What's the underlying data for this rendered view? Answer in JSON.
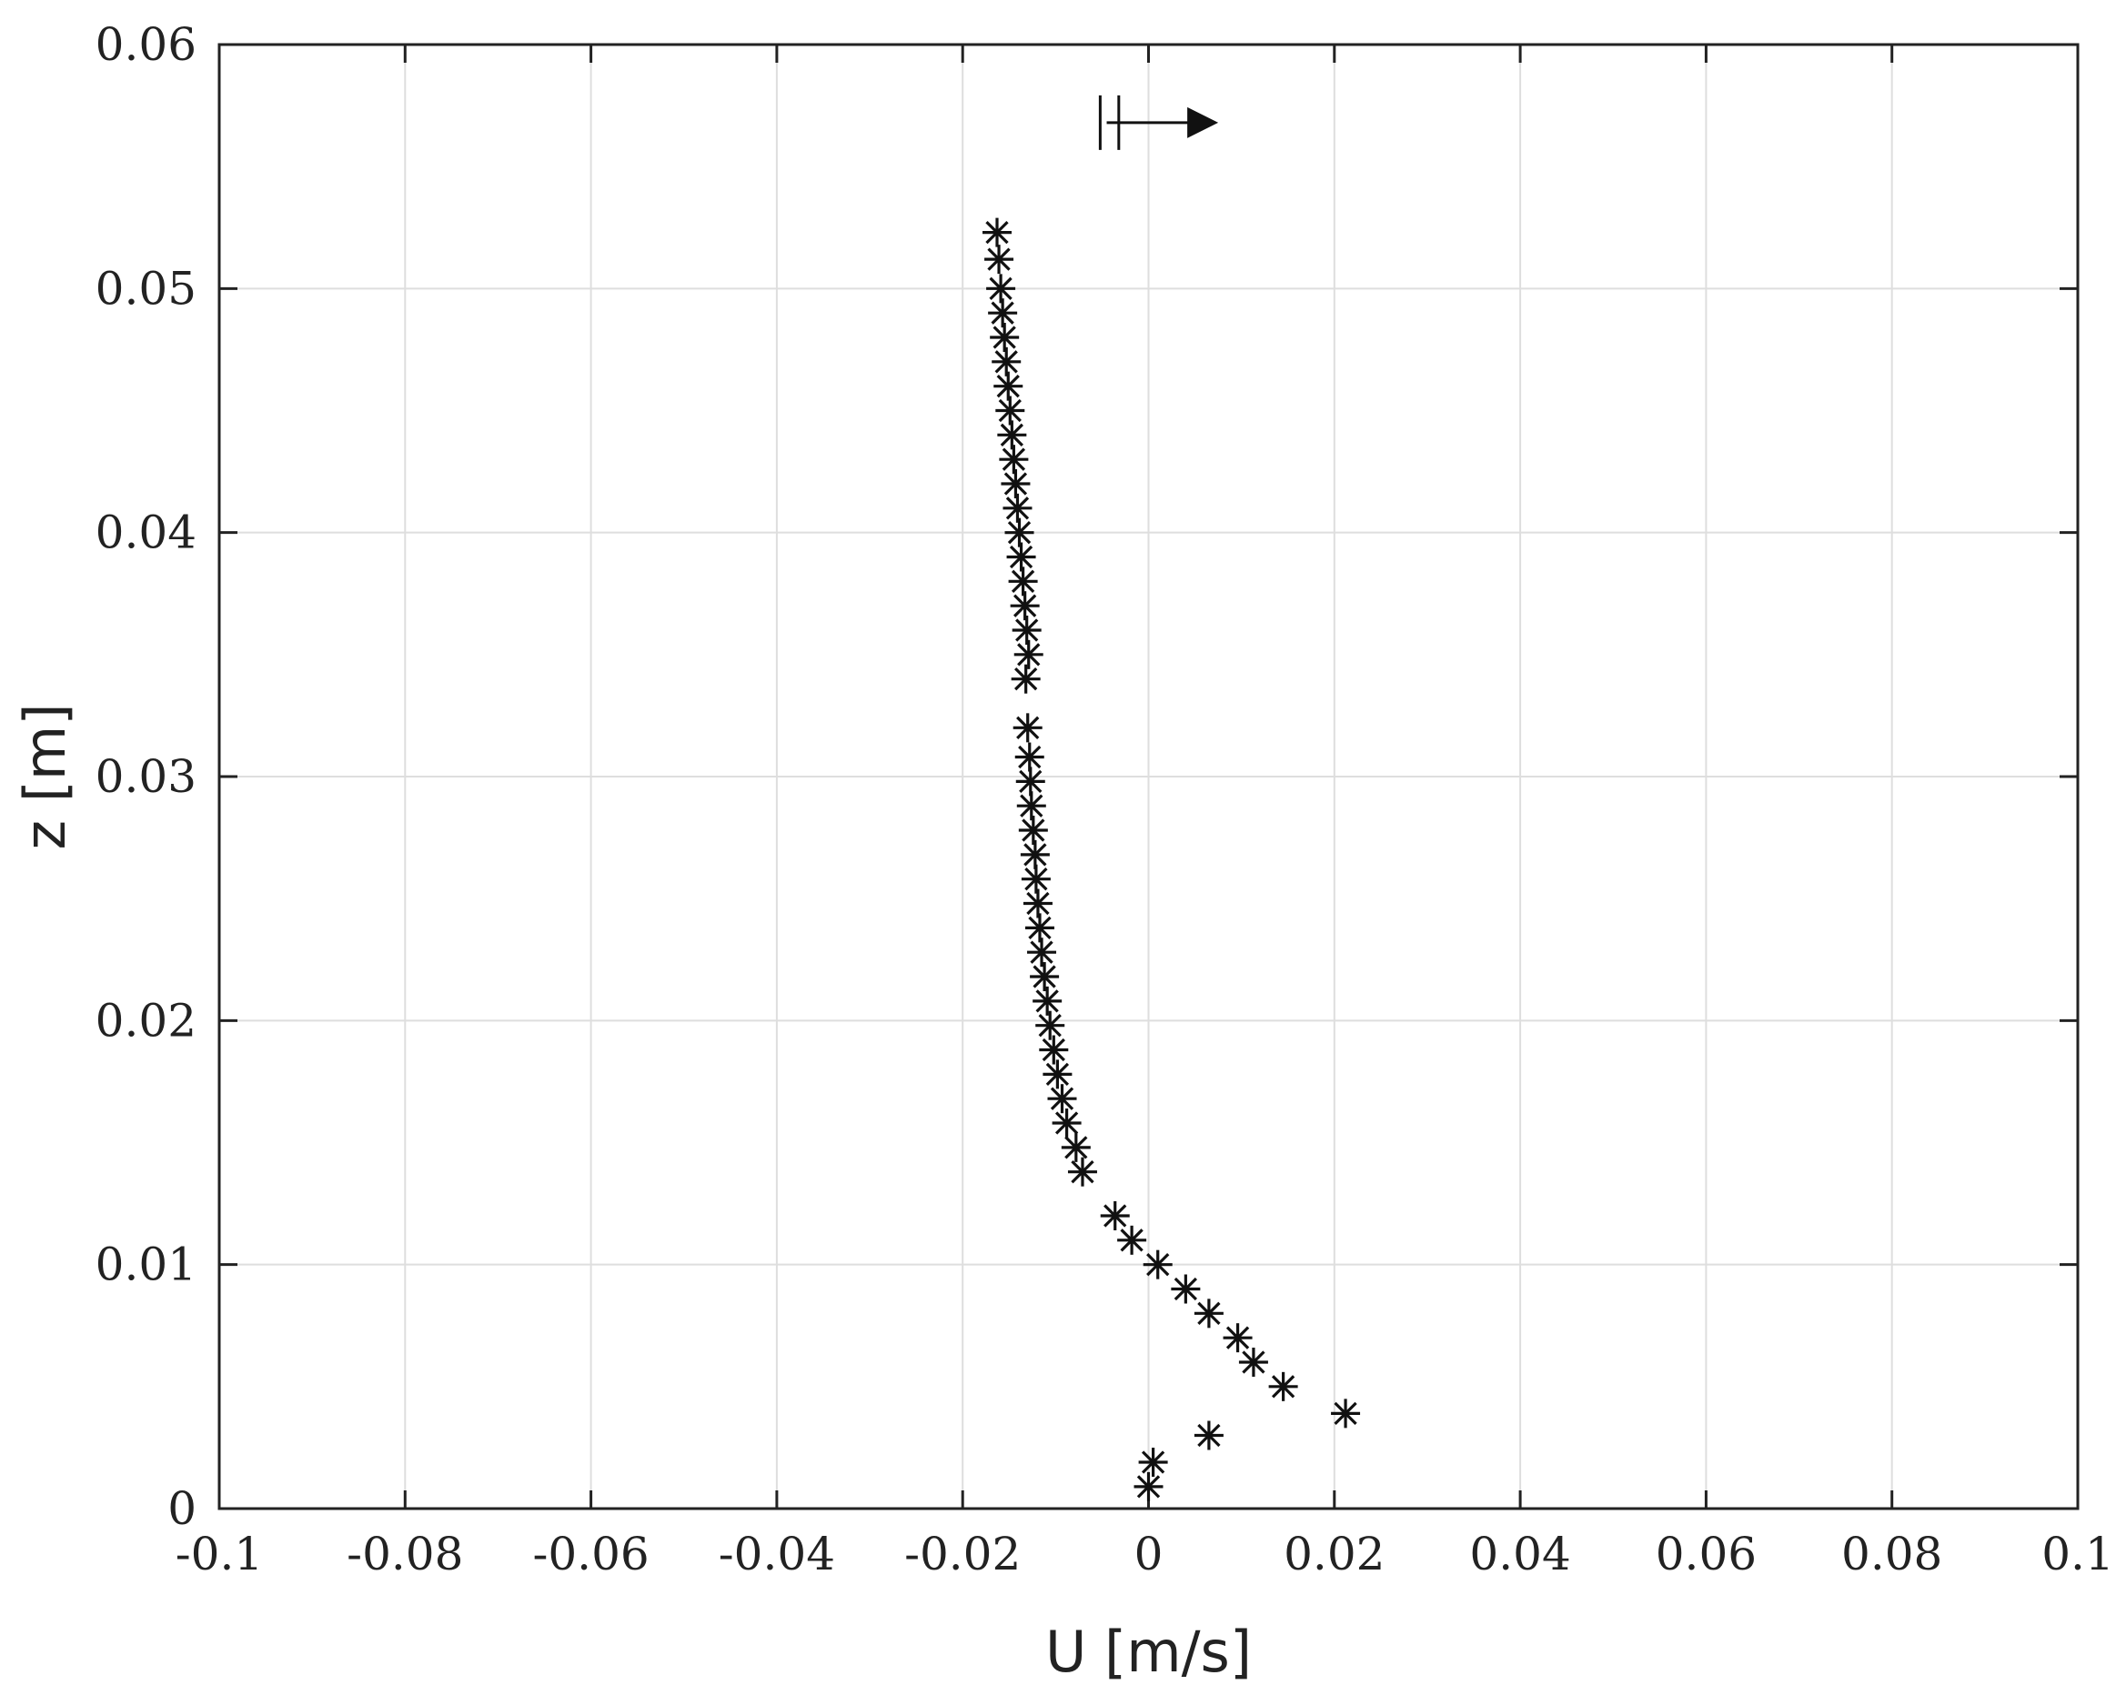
{
  "chart_data": {
    "type": "scatter",
    "title": "",
    "xlabel": "U [m/s]",
    "ylabel": "z [m]",
    "xlim": [
      -0.1,
      0.1
    ],
    "ylim": [
      0,
      0.06
    ],
    "grid": true,
    "x_ticks": [
      -0.1,
      -0.08,
      -0.06,
      -0.04,
      -0.02,
      0,
      0.02,
      0.04,
      0.06,
      0.08,
      0.1
    ],
    "x_tick_labels": [
      "-0.1",
      "-0.08",
      "-0.06",
      "-0.04",
      "-0.02",
      "0",
      "0.02",
      "0.04",
      "0.06",
      "0.08",
      "0.1"
    ],
    "y_ticks": [
      0,
      0.01,
      0.02,
      0.03,
      0.04,
      0.05,
      0.06
    ],
    "y_tick_labels": [
      "0",
      "0.01",
      "0.02",
      "0.03",
      "0.04",
      "0.05",
      "0.06"
    ],
    "marker": "asterisk",
    "marker_color": "#111111",
    "series": [
      {
        "x": [
          0.0,
          0.0005,
          0.0065,
          0.0212,
          0.0145,
          0.0113,
          0.0096,
          0.0065,
          0.004,
          0.001,
          -0.0018,
          -0.0036,
          -0.0071,
          -0.0078,
          -0.0088,
          -0.0093,
          -0.0098,
          -0.0102,
          -0.0106,
          -0.0109,
          -0.0112,
          -0.0115,
          -0.0117,
          -0.0119,
          -0.0121,
          -0.0122,
          -0.0124,
          -0.0126,
          -0.0127,
          -0.0128,
          -0.013,
          -0.0132,
          -0.0129,
          -0.0131,
          -0.0133,
          -0.0135,
          -0.0137,
          -0.0139,
          -0.0141,
          -0.0143,
          -0.0145,
          -0.0147,
          -0.0149,
          -0.0151,
          -0.0153,
          -0.0155,
          -0.0157,
          -0.0159,
          -0.0161,
          -0.0163
        ],
        "y": [
          0.0009,
          0.0019,
          0.003,
          0.0039,
          0.005,
          0.006,
          0.007,
          0.008,
          0.009,
          0.01,
          0.011,
          0.012,
          0.0138,
          0.0148,
          0.0158,
          0.0168,
          0.0178,
          0.0188,
          0.0198,
          0.0208,
          0.0218,
          0.0228,
          0.0238,
          0.0248,
          0.0258,
          0.0268,
          0.0278,
          0.0288,
          0.0298,
          0.0308,
          0.032,
          0.034,
          0.035,
          0.036,
          0.037,
          0.038,
          0.039,
          0.04,
          0.041,
          0.042,
          0.043,
          0.044,
          0.045,
          0.046,
          0.047,
          0.048,
          0.049,
          0.05,
          0.0512,
          0.0523
        ]
      }
    ],
    "annotation": {
      "type": "arrow",
      "direction": "right",
      "x_start": -0.0045,
      "x_end": 0.0075,
      "y": 0.0568,
      "double_bar_x": [
        -0.0052,
        -0.0032
      ]
    }
  }
}
